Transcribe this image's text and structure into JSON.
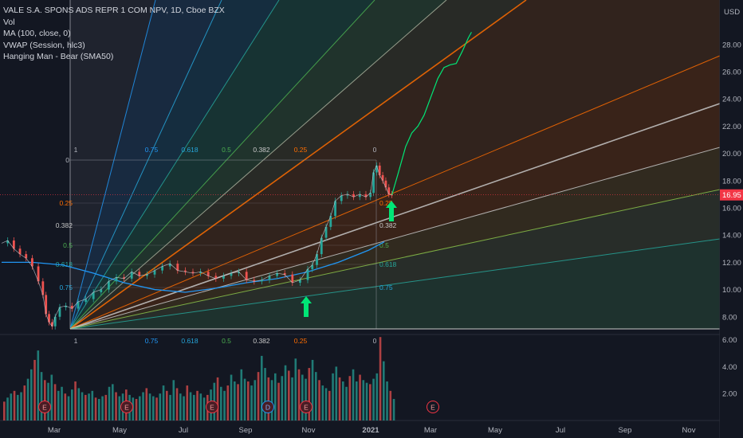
{
  "legend": {
    "title": "VALE S.A. SPONS ADS REPR 1 COM NPV, 1D, Cboe BZX",
    "lines": [
      "Vol",
      "MA (100, close, 0)",
      "VWAP (Session, hlc3)",
      "Hanging Man - Bear (SMA50)"
    ]
  },
  "currency": "USD",
  "last_price": "16.95",
  "colors": {
    "background": "#131722",
    "fan_orange": "#ff6d00",
    "arrow_green": "#00e676",
    "ma_blue": "#2196f3",
    "last_price_red": "#f23645",
    "bar_green": "#26a69a",
    "bar_red": "#ef5350"
  },
  "chart_data": {
    "type": "line",
    "subtype": "candlestick with gann fan and volume",
    "title": "VALE S.A. SPONS ADS REPR 1 COM NPV, 1D, Cboe BZX",
    "price_axis": {
      "ticks": [
        "28.00",
        "26.00",
        "24.00",
        "22.00",
        "20.00",
        "18.00",
        "16.00",
        "14.00",
        "12.00",
        "10.00",
        "8.00"
      ],
      "range": [
        6.8,
        29.0
      ]
    },
    "volume_axis": {
      "ticks": [
        "6.00",
        "4.00",
        "2.00"
      ]
    },
    "time_axis": {
      "ticks": [
        "Mar",
        "May",
        "Jul",
        "Sep",
        "Nov",
        "2021",
        "Mar",
        "May",
        "Jul",
        "Sep",
        "Nov"
      ]
    },
    "price_series": {
      "name": "Price",
      "points": [
        [
          0,
          13.4
        ],
        [
          4,
          13.6
        ],
        [
          8,
          13.0
        ],
        [
          12,
          12.6
        ],
        [
          16,
          12.3
        ],
        [
          20,
          11.7
        ],
        [
          24,
          10.6
        ],
        [
          27,
          9.6
        ],
        [
          29,
          8.2
        ],
        [
          31,
          7.6
        ],
        [
          33,
          7.3
        ],
        [
          35,
          8.0
        ],
        [
          38,
          8.7
        ],
        [
          42,
          8.8
        ],
        [
          46,
          8.6
        ],
        [
          50,
          9.1
        ],
        [
          55,
          9.3
        ],
        [
          60,
          9.8
        ],
        [
          65,
          10.0
        ],
        [
          70,
          10.6
        ],
        [
          75,
          10.9
        ],
        [
          80,
          10.8
        ],
        [
          85,
          11.3
        ],
        [
          90,
          11.0
        ],
        [
          95,
          11.1
        ],
        [
          100,
          11.4
        ],
        [
          105,
          11.7
        ],
        [
          110,
          11.9
        ],
        [
          115,
          11.4
        ],
        [
          120,
          11.3
        ],
        [
          125,
          11.2
        ],
        [
          130,
          11.3
        ],
        [
          135,
          11.0
        ],
        [
          140,
          10.8
        ],
        [
          145,
          11.0
        ],
        [
          150,
          11.2
        ],
        [
          155,
          11.3
        ],
        [
          160,
          10.7
        ],
        [
          165,
          10.6
        ],
        [
          170,
          10.7
        ],
        [
          175,
          11.0
        ],
        [
          180,
          11.2
        ],
        [
          185,
          11.1
        ],
        [
          190,
          10.5
        ],
        [
          195,
          10.7
        ],
        [
          200,
          11.5
        ],
        [
          203,
          11.8
        ],
        [
          206,
          12.6
        ],
        [
          209,
          13.8
        ],
        [
          212,
          14.6
        ],
        [
          215,
          15.4
        ],
        [
          218,
          16.5
        ],
        [
          222,
          16.9
        ],
        [
          226,
          17.0
        ],
        [
          230,
          16.8
        ],
        [
          234,
          17.0
        ],
        [
          238,
          16.8
        ],
        [
          241,
          17.1
        ],
        [
          243,
          18.6
        ],
        [
          245,
          19.1
        ],
        [
          247,
          18.4
        ],
        [
          249,
          18.0
        ],
        [
          251,
          17.5
        ],
        [
          253,
          17.0
        ],
        [
          255,
          16.95
        ]
      ]
    },
    "projection_series": {
      "name": "Projection",
      "points": [
        [
          255,
          16.95
        ],
        [
          259,
          18.5
        ],
        [
          264,
          20.5
        ],
        [
          268,
          21.5
        ],
        [
          272,
          22.0
        ],
        [
          276,
          22.8
        ],
        [
          280,
          24.0
        ],
        [
          285,
          25.5
        ],
        [
          289,
          26.3
        ],
        [
          293,
          26.5
        ],
        [
          297,
          26.6
        ],
        [
          301,
          27.5
        ],
        [
          305,
          28.5
        ],
        [
          307,
          28.9
        ]
      ]
    },
    "ma_series": {
      "name": "MA (100, close, 0)",
      "points": [
        [
          0,
          12.0
        ],
        [
          20,
          12.0
        ],
        [
          40,
          11.8
        ],
        [
          60,
          11.2
        ],
        [
          80,
          10.5
        ],
        [
          100,
          10.0
        ],
        [
          120,
          9.8
        ],
        [
          140,
          10.1
        ],
        [
          160,
          10.5
        ],
        [
          180,
          10.8
        ],
        [
          200,
          11.3
        ],
        [
          220,
          12.0
        ],
        [
          240,
          12.9
        ],
        [
          250,
          13.5
        ]
      ]
    },
    "gann_fan": {
      "origin": [
        45,
        6.7
      ],
      "ratios": [
        "1",
        "0.75",
        "0.618",
        "0.5",
        "0.382",
        "0.25",
        "0"
      ],
      "levels": [
        "0.25",
        "0.382",
        "0.5",
        "0.618",
        "0.75"
      ],
      "zero_level": "0"
    },
    "earnings_markers": [
      "E",
      "E",
      "E",
      "D",
      "E",
      "E"
    ],
    "volume": [
      1.4,
      1.7,
      2.0,
      2.2,
      1.9,
      2.1,
      2.6,
      3.1,
      3.8,
      4.5,
      5.2,
      3.6,
      3.0,
      2.8,
      3.4,
      2.7,
      2.2,
      2.5,
      2.0,
      1.8,
      2.3,
      2.9,
      2.4,
      2.1,
      1.9,
      2.0,
      2.2,
      1.7,
      1.6,
      1.8,
      1.9,
      2.5,
      2.7,
      2.1,
      1.8,
      2.0,
      2.3,
      1.9,
      1.7,
      1.6,
      1.8,
      2.1,
      2.4,
      2.0,
      1.8,
      1.7,
      2.0,
      2.6,
      2.2,
      1.9,
      3.0,
      2.4,
      2.0,
      1.8,
      2.6,
      2.1,
      1.9,
      2.2,
      2.0,
      1.7,
      1.9,
      2.3,
      2.8,
      3.2,
      2.5,
      2.2,
      2.6,
      3.4,
      2.9,
      2.7,
      3.8,
      3.1,
      2.9,
      2.6,
      3.0,
      3.6,
      4.8,
      3.9,
      3.2,
      3.0,
      3.5,
      2.8,
      3.3,
      4.1,
      3.7,
      3.2,
      4.6,
      3.8,
      3.4,
      3.1,
      3.9,
      4.5,
      3.6,
      3.0,
      2.6,
      2.4,
      2.2,
      3.5,
      4.0,
      3.2,
      2.9,
      2.5,
      3.3,
      3.8,
      2.9,
      3.4,
      3.0,
      2.8,
      2.7,
      3.1,
      3.5,
      6.2,
      4.4,
      2.9,
      2.2,
      1.6
    ]
  }
}
